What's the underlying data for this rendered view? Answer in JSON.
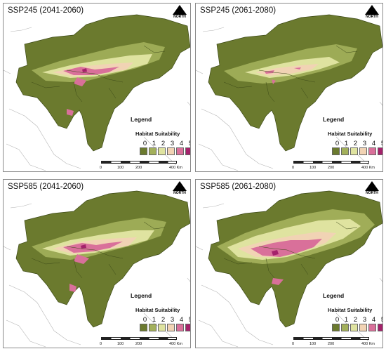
{
  "panels": [
    {
      "title": "SSP245 (2041-2060)",
      "scenario": "SSP245",
      "period": "2041-2060"
    },
    {
      "title": "SSP245 (2061-2080)",
      "scenario": "SSP245",
      "period": "2061-2080"
    },
    {
      "title": "SSP585 (2041-2060)",
      "scenario": "SSP585",
      "period": "2041-2060"
    },
    {
      "title": "SSP585 (2061-2080)",
      "scenario": "SSP585",
      "period": "2061-2080"
    }
  ],
  "legend": {
    "title": "Legend",
    "subtitle": "Habitat Suitability",
    "classes": [
      {
        "label": "0",
        "color": "#6b7a2e"
      },
      {
        "label": "1",
        "color": "#a3b05b"
      },
      {
        "label": "2",
        "color": "#dfe3a0"
      },
      {
        "label": "3",
        "color": "#f1d3b4"
      },
      {
        "label": "4",
        "color": "#d9709a"
      },
      {
        "label": "5",
        "color": "#a4226b"
      }
    ]
  },
  "north_arrow": {
    "label": "NORTH"
  },
  "scale_bar": {
    "labels": [
      "0",
      "100",
      "200",
      "400 Km"
    ]
  },
  "colors": {
    "background_region": "#6b7a2e",
    "outside_outline": "#b5b5b5",
    "panel_border": "#8a8a8a"
  }
}
